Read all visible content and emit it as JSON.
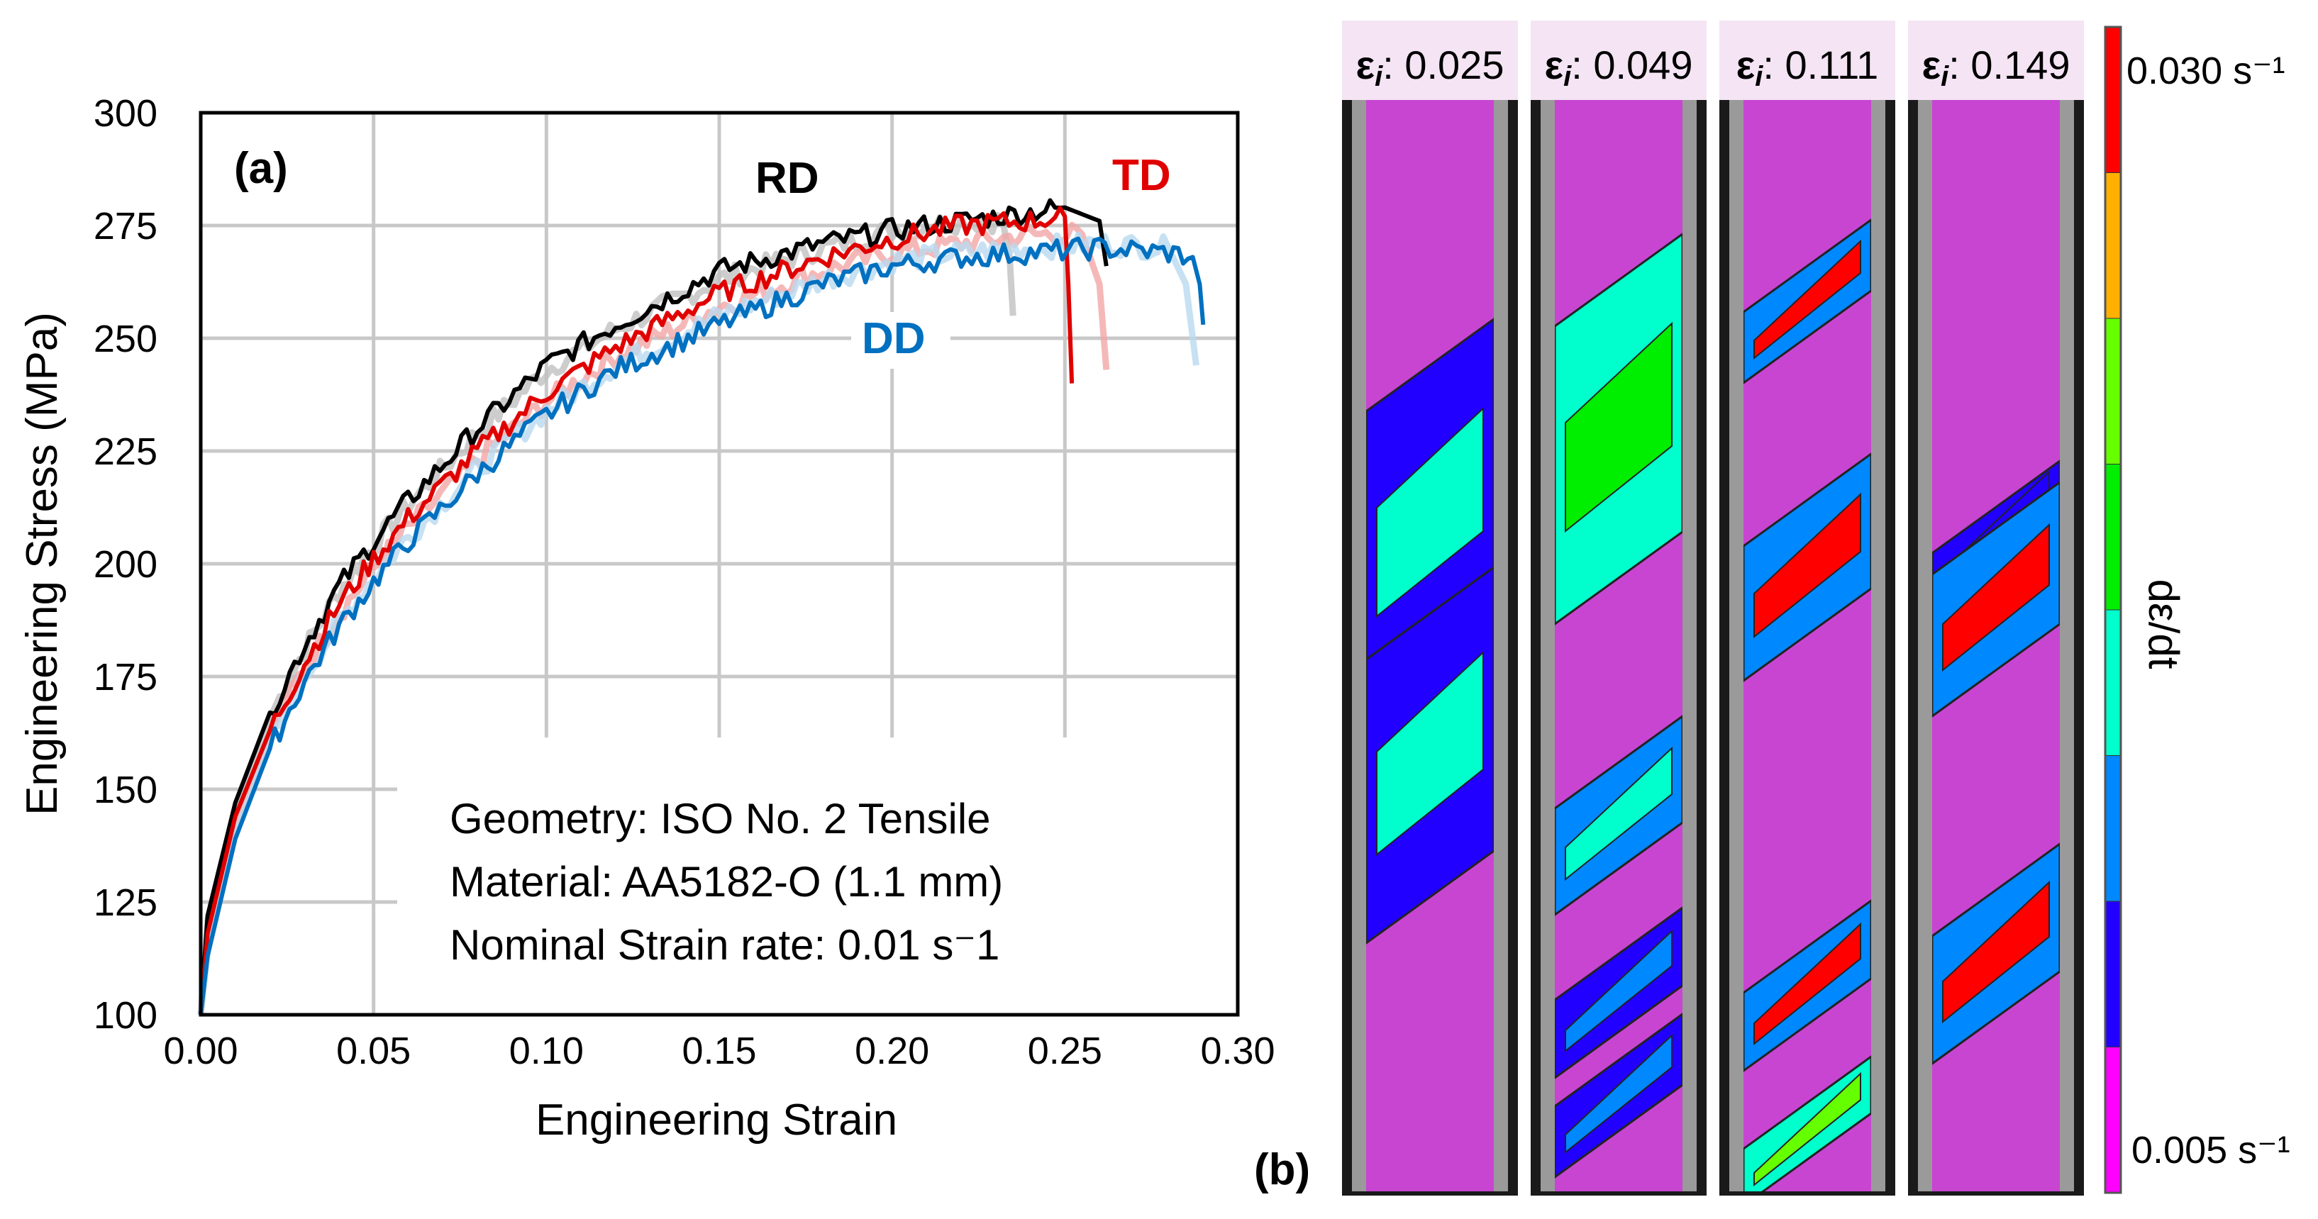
{
  "chart_data": {
    "type": "line",
    "panel_label": "(a)",
    "xlabel": "Engineering Strain",
    "ylabel": "Engineering Stress (MPa)",
    "xlim": [
      0,
      0.3
    ],
    "ylim": [
      100,
      300
    ],
    "xticks": [
      "0.00",
      "0.05",
      "0.10",
      "0.15",
      "0.20",
      "0.25",
      "0.30"
    ],
    "yticks": [
      "100",
      "125",
      "150",
      "175",
      "200",
      "225",
      "250",
      "275",
      "300"
    ],
    "grid": true,
    "series": [
      {
        "name": "RD replicate",
        "label": "",
        "color": "#c0c0c0",
        "faded": true,
        "x": [
          0,
          0.002,
          0.01,
          0.02,
          0.03,
          0.04,
          0.05,
          0.06,
          0.08,
          0.1,
          0.12,
          0.15,
          0.18,
          0.2,
          0.22,
          0.232,
          0.234,
          0.235
        ],
        "y": [
          100,
          121,
          146,
          166,
          181,
          194,
          204,
          213,
          229,
          243,
          252,
          263,
          270,
          274,
          276,
          276,
          268,
          255
        ]
      },
      {
        "name": "TD replicate",
        "label": "",
        "color": "#f2a6a6",
        "faded": true,
        "x": [
          0,
          0.002,
          0.01,
          0.02,
          0.03,
          0.04,
          0.05,
          0.06,
          0.08,
          0.1,
          0.12,
          0.15,
          0.18,
          0.2,
          0.22,
          0.24,
          0.255,
          0.26,
          0.262
        ],
        "y": [
          100,
          116,
          142,
          162,
          177,
          189,
          199,
          208,
          223,
          236,
          246,
          257,
          265,
          269,
          271,
          273,
          273,
          262,
          243
        ]
      },
      {
        "name": "DD replicate",
        "label": "",
        "color": "#b9daf0",
        "faded": true,
        "x": [
          0,
          0.002,
          0.01,
          0.02,
          0.03,
          0.04,
          0.05,
          0.06,
          0.08,
          0.1,
          0.12,
          0.15,
          0.18,
          0.2,
          0.22,
          0.24,
          0.26,
          0.28,
          0.285,
          0.288
        ],
        "y": [
          100,
          114,
          140,
          160,
          175,
          187,
          197,
          206,
          221,
          234,
          244,
          255,
          263,
          267,
          269,
          270,
          271,
          270,
          262,
          244
        ]
      },
      {
        "name": "RD",
        "label": "RD",
        "color": "#000000",
        "faded": false,
        "x": [
          0,
          0.002,
          0.01,
          0.02,
          0.03,
          0.04,
          0.05,
          0.06,
          0.08,
          0.1,
          0.12,
          0.15,
          0.18,
          0.2,
          0.22,
          0.24,
          0.25,
          0.26,
          0.262
        ],
        "y": [
          100,
          122,
          147,
          167,
          182,
          195,
          205,
          214,
          230,
          244,
          253,
          265,
          271,
          274,
          276,
          278,
          279,
          276,
          266
        ]
      },
      {
        "name": "TD",
        "label": "TD",
        "color": "#e00000",
        "faded": false,
        "x": [
          0,
          0.002,
          0.01,
          0.02,
          0.03,
          0.04,
          0.05,
          0.06,
          0.08,
          0.1,
          0.12,
          0.15,
          0.18,
          0.2,
          0.22,
          0.24,
          0.25,
          0.251,
          0.252
        ],
        "y": [
          100,
          118,
          144,
          163,
          178,
          191,
          201,
          210,
          225,
          238,
          248,
          260,
          268,
          272,
          275,
          276,
          277,
          262,
          240
        ]
      },
      {
        "name": "DD",
        "label": "DD",
        "color": "#0070c0",
        "faded": false,
        "x": [
          0,
          0.002,
          0.01,
          0.02,
          0.03,
          0.04,
          0.05,
          0.06,
          0.08,
          0.1,
          0.12,
          0.15,
          0.18,
          0.2,
          0.22,
          0.24,
          0.26,
          0.28,
          0.287,
          0.289,
          0.29
        ],
        "y": [
          100,
          113,
          139,
          159,
          174,
          186,
          196,
          205,
          220,
          233,
          243,
          253,
          262,
          266,
          268,
          269,
          270,
          269,
          268,
          262,
          253
        ]
      }
    ],
    "annotation_lines": [
      "Geometry: ISO No. 2 Tensile",
      "Material: AA5182-O (1.1 mm)",
      "Nominal Strain rate: 0.01 s⁻1"
    ]
  },
  "panel_b": {
    "panel_label": "(b)",
    "strips": [
      {
        "symbol": "ε",
        "sub": "i",
        "value": ": 0.025"
      },
      {
        "symbol": "ε",
        "sub": "i",
        "value": ": 0.049"
      },
      {
        "symbol": "ε",
        "sub": "i",
        "value": ": 0.111"
      },
      {
        "symbol": "ε",
        "sub": "i",
        "value": ": 0.149"
      }
    ],
    "colorbar": {
      "max_label": "0.030 s⁻¹",
      "min_label": "0.005 s⁻¹",
      "title": "dε/dt",
      "colors": [
        "#ff0000",
        "#ffb000",
        "#66ff00",
        "#00ee00",
        "#00ffcc",
        "#0088ff",
        "#2200ff",
        "#ff00ff"
      ]
    }
  }
}
